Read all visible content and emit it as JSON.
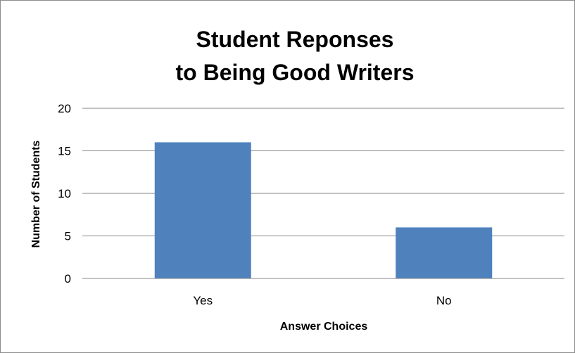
{
  "chart_data": {
    "type": "bar",
    "title_lines": [
      "Student Reponses",
      "to Being Good Writers"
    ],
    "categories": [
      "Yes",
      "No"
    ],
    "values": [
      16,
      6
    ],
    "xlabel": "Answer Choices",
    "ylabel": "Number of Students",
    "ylim": [
      0,
      20
    ],
    "yticks": [
      0,
      5,
      10,
      15,
      20
    ],
    "grid": true,
    "legend": "none",
    "bar_color": "#4f81bd",
    "grid_color": "#868686"
  }
}
